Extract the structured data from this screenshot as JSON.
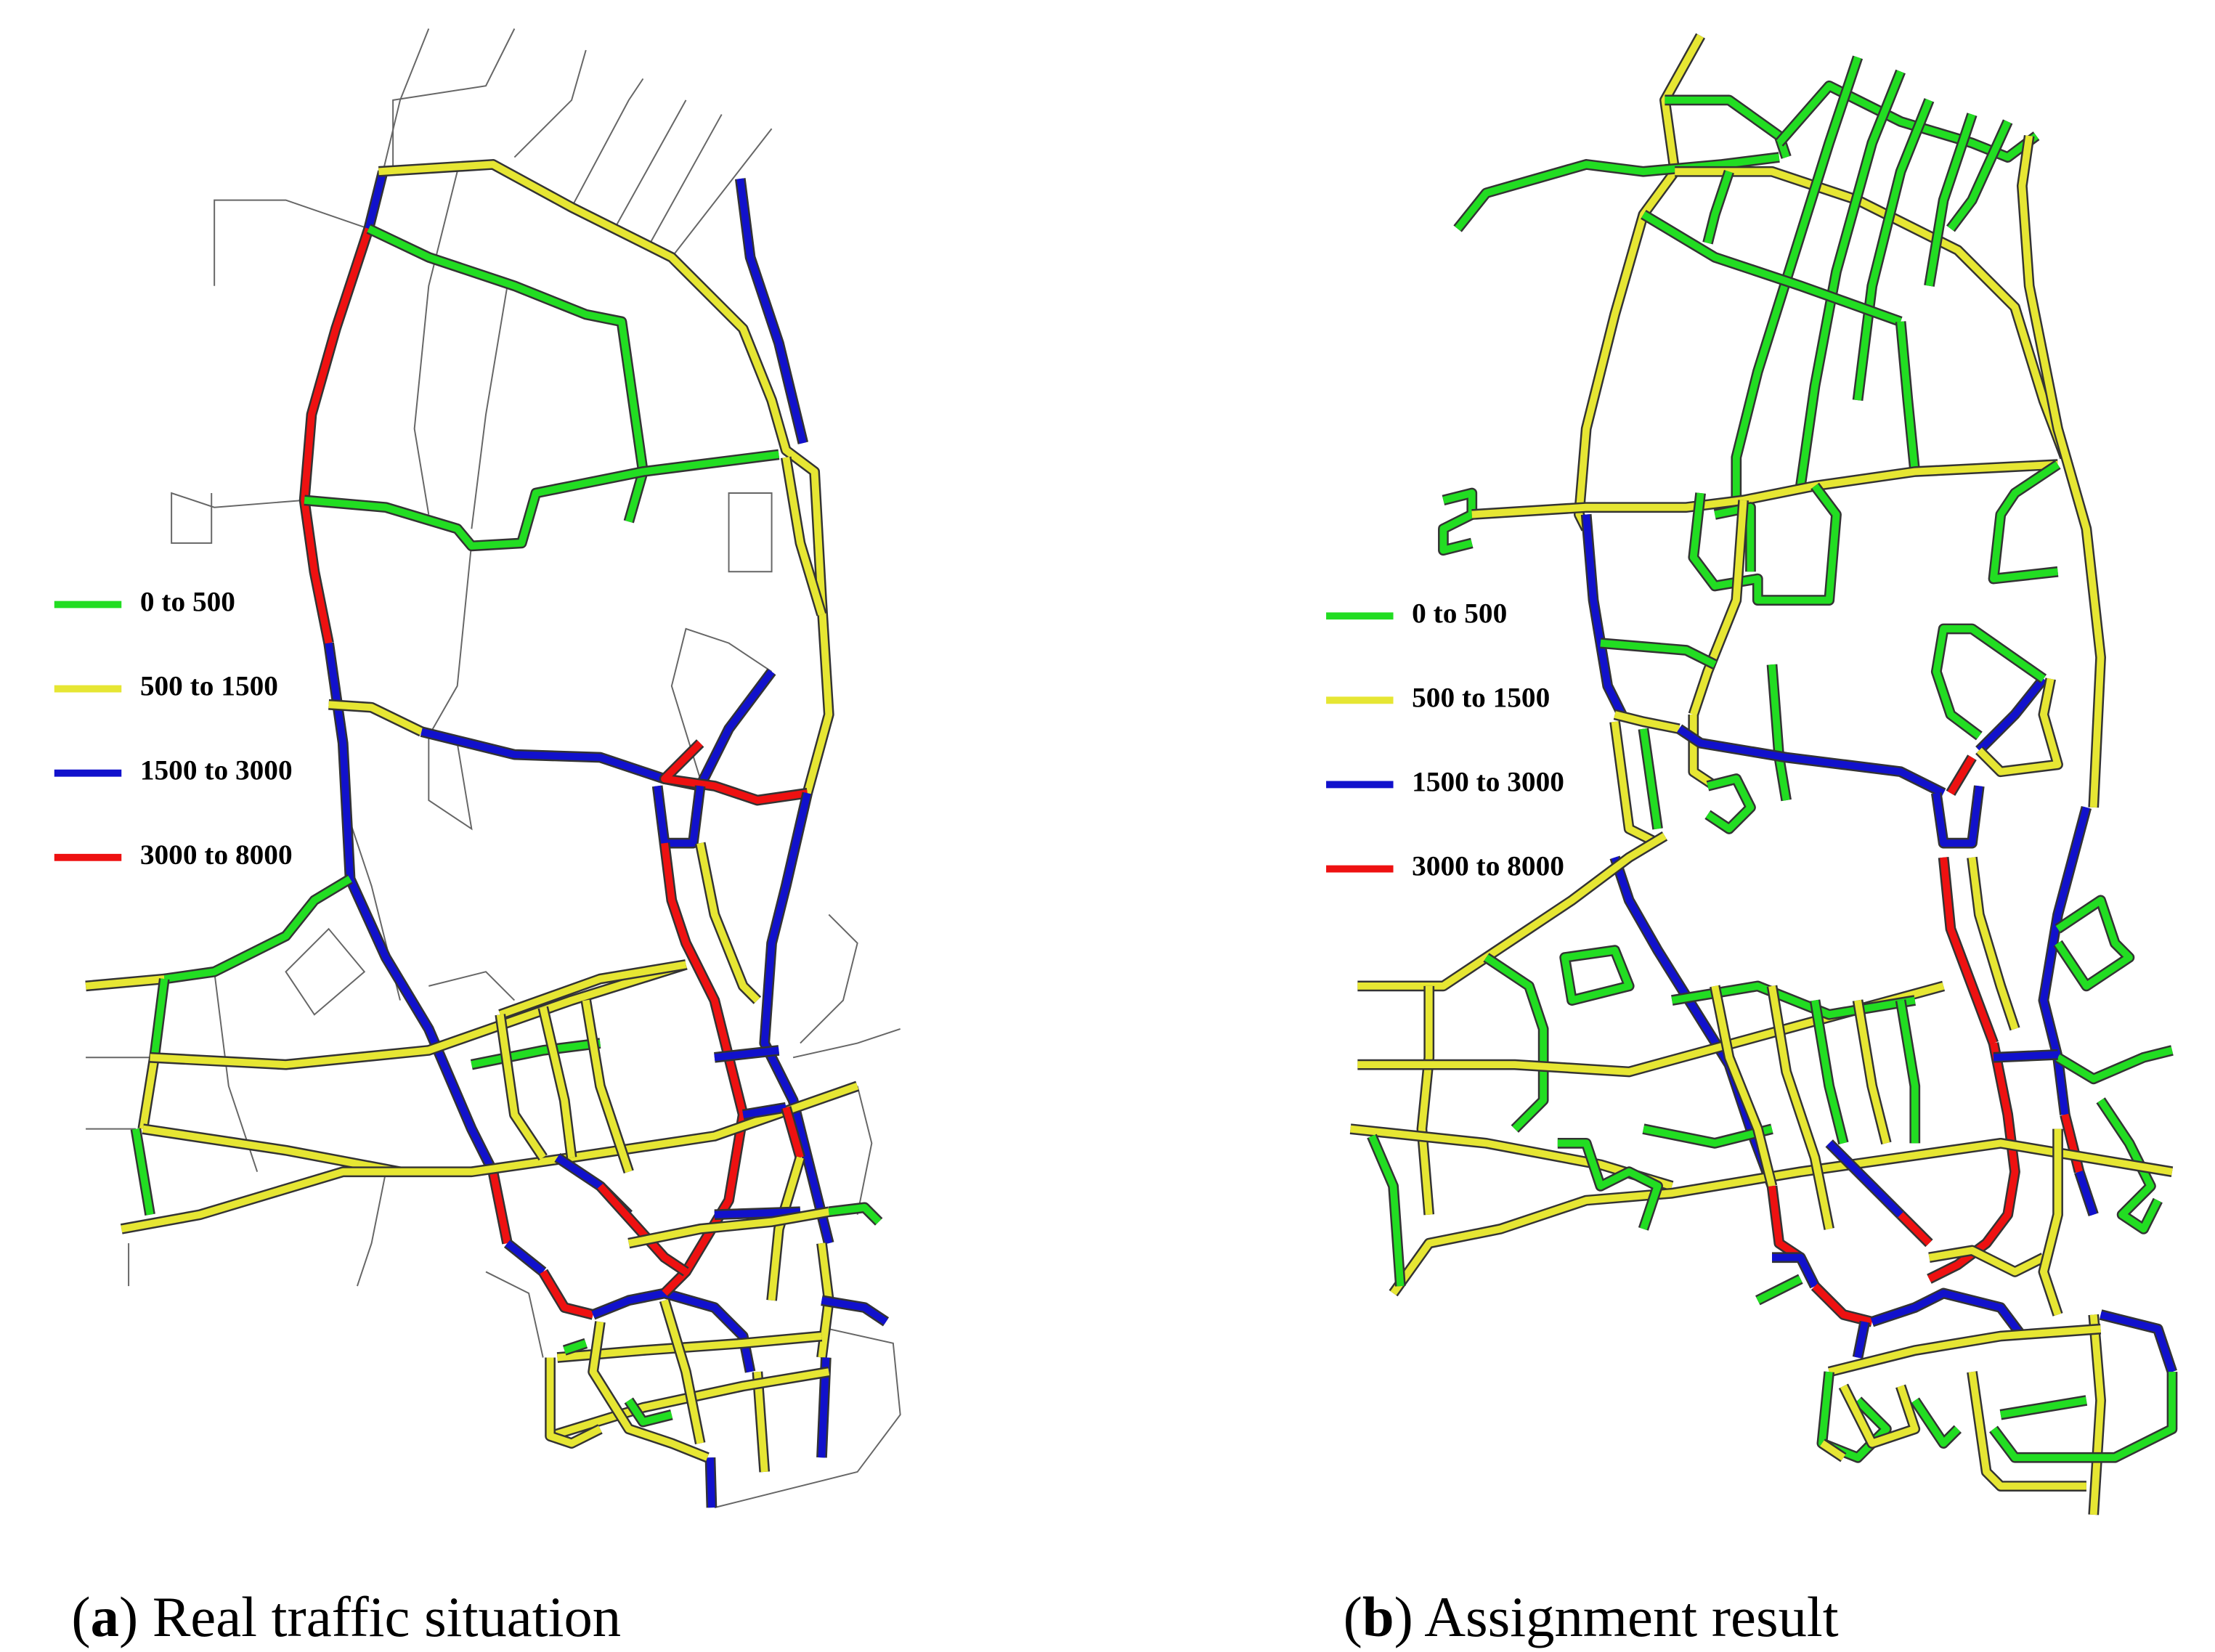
{
  "panels": [
    {
      "caption": [
        "(",
        "a",
        ") Real traffic situation"
      ],
      "legend": [
        {
          "label": "0 to 500",
          "color": "#22dd22"
        },
        {
          "label": "500 to 1500",
          "color": "#e6e633"
        },
        {
          "label": "1500 to 3000",
          "color": "#1111cc"
        },
        {
          "label": "3000 to 8000",
          "color": "#ee1111"
        }
      ]
    },
    {
      "caption": [
        "(",
        "b",
        ") Assignment result"
      ],
      "legend": [
        {
          "label": "0 to 500",
          "color": "#22dd22"
        },
        {
          "label": "500 to 1500",
          "color": "#e6e633"
        },
        {
          "label": "1500 to 3000",
          "color": "#1111cc"
        },
        {
          "label": "3000 to 8000",
          "color": "#ee1111"
        }
      ]
    }
  ]
}
